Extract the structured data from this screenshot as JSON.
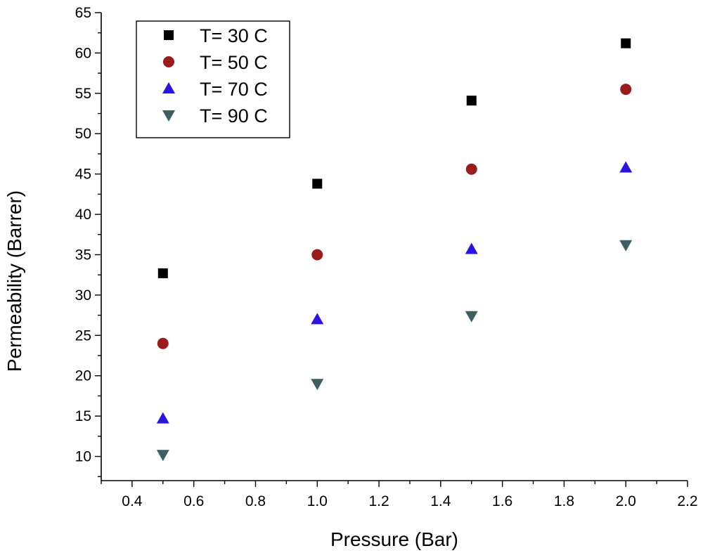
{
  "chart_data": {
    "type": "scatter",
    "title": "",
    "xlabel": "Pressure (Bar)",
    "ylabel": "Permeability (Barrer)",
    "xlim": [
      0.3,
      2.2
    ],
    "ylim": [
      7,
      65
    ],
    "x": [
      0.5,
      1.0,
      1.5,
      2.0
    ],
    "xticks": [
      0.4,
      0.6,
      0.8,
      1.0,
      1.2,
      1.4,
      1.6,
      1.8,
      2.0,
      2.2
    ],
    "xtick_labels": [
      "0.4",
      "0.6",
      "0.8",
      "1.0",
      "1.2",
      "1.4",
      "1.6",
      "1.8",
      "2.0",
      "2.2"
    ],
    "yticks": [
      10,
      15,
      20,
      25,
      30,
      35,
      40,
      45,
      50,
      55,
      60,
      65
    ],
    "ytick_labels": [
      "10",
      "15",
      "20",
      "25",
      "30",
      "35",
      "40",
      "45",
      "50",
      "55",
      "60",
      "65"
    ],
    "grid": false,
    "legend_position": "top-left",
    "series": [
      {
        "name": "T= 30 C",
        "marker": "square",
        "color": "#000000",
        "values": [
          32.7,
          43.8,
          54.1,
          61.2
        ]
      },
      {
        "name": "T= 50 C",
        "marker": "circle",
        "color": "#9b1c1c",
        "values": [
          24.0,
          35.0,
          45.6,
          55.5
        ]
      },
      {
        "name": "T= 70 C",
        "marker": "triangle-up",
        "color": "#2a14e0",
        "values": [
          14.7,
          27.0,
          35.7,
          45.8
        ]
      },
      {
        "name": "T= 90 C",
        "marker": "triangle-down",
        "color": "#3e5f62",
        "values": [
          10.2,
          19.0,
          27.4,
          36.2
        ]
      }
    ]
  }
}
